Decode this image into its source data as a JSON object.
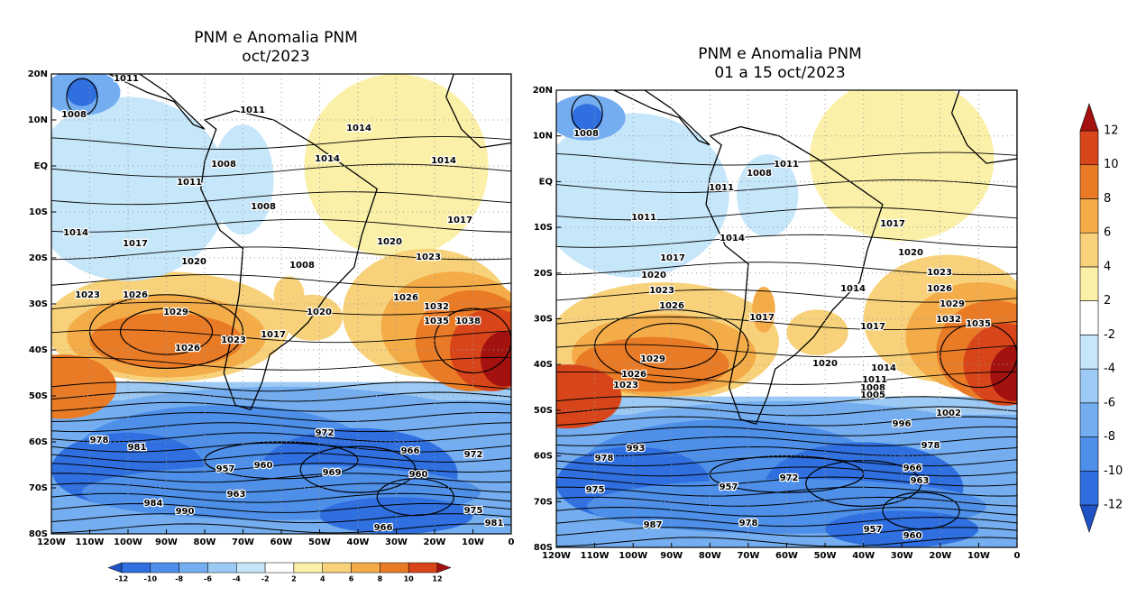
{
  "maps": [
    {
      "title": [
        "PNM e Anomalia PNM",
        "oct/2023"
      ],
      "lat_labels": [
        "20N",
        "10N",
        "EQ",
        "10S",
        "20S",
        "30S",
        "40S",
        "50S",
        "60S",
        "70S",
        "80S"
      ],
      "lon_labels": [
        "120W",
        "110W",
        "100W",
        "90W",
        "80W",
        "70W",
        "60W",
        "50W",
        "40W",
        "30W",
        "20W",
        "10W",
        "0"
      ],
      "contour_labels": [
        1011,
        1008,
        1011,
        1014,
        1008,
        1011,
        1008,
        1014,
        1017,
        1020,
        1023,
        1026,
        1029,
        1026,
        1023,
        1017,
        1008,
        1014,
        1014,
        1017,
        1020,
        1023,
        1026,
        1032,
        1035,
        1038,
        1020,
        972,
        981,
        978,
        957,
        960,
        963,
        966,
        969,
        972,
        960,
        975,
        981,
        990,
        984,
        966
      ]
    },
    {
      "title": [
        "PNM e Anomalia PNM",
        "01 a 15 oct/2023"
      ],
      "lat_labels": [
        "20N",
        "10N",
        "EQ",
        "10S",
        "20S",
        "30S",
        "40S",
        "50S",
        "60S",
        "70S",
        "80S"
      ],
      "lon_labels": [
        "120W",
        "110W",
        "100W",
        "90W",
        "80W",
        "70W",
        "60W",
        "50W",
        "40W",
        "30W",
        "20W",
        "10W",
        "0"
      ],
      "contour_labels": [
        1008,
        1011,
        1008,
        1011,
        1011,
        1014,
        1017,
        1017,
        1020,
        1020,
        1023,
        1026,
        1029,
        1026,
        1023,
        1023,
        1026,
        1029,
        1032,
        1035,
        1014,
        1017,
        1017,
        1020,
        1014,
        1011,
        1008,
        1005,
        1002,
        996,
        978,
        966,
        963,
        978,
        975,
        993,
        957,
        972,
        957,
        960,
        978,
        987
      ]
    }
  ],
  "colorbar": {
    "labels": [
      -12,
      -10,
      -8,
      -6,
      -4,
      -2,
      2,
      4,
      6,
      8,
      10,
      12
    ],
    "colors": [
      "#1f52c4",
      "#2f6fe0",
      "#4d8fe9",
      "#74aef0",
      "#9ccaf5",
      "#c6e6fa",
      "#ffffff",
      "#fbf0a8",
      "#f8d27a",
      "#f4ac48",
      "#ea7b26",
      "#d8451a",
      "#a3120f"
    ]
  }
}
